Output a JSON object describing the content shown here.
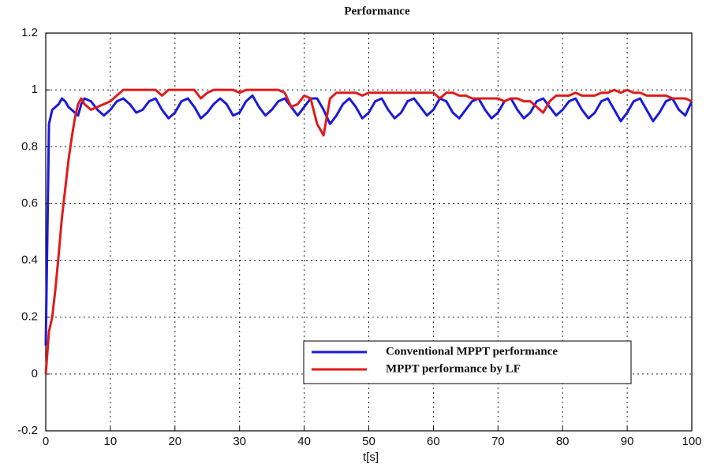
{
  "chart_data": {
    "type": "line",
    "title": "Performance",
    "x_label": "t[s]",
    "x": [
      0,
      0.5,
      1,
      1.5,
      2,
      2.5,
      3,
      3.5,
      4,
      4.5,
      5,
      5.5,
      6,
      7,
      8,
      9,
      10,
      11,
      12,
      13,
      14,
      15,
      16,
      17,
      18,
      19,
      20,
      21,
      22,
      23,
      24,
      25,
      26,
      27,
      28,
      29,
      30,
      31,
      32,
      33,
      34,
      35,
      36,
      37,
      38,
      39,
      40,
      41,
      42,
      43,
      44,
      45,
      46,
      47,
      48,
      49,
      50,
      51,
      52,
      53,
      54,
      55,
      56,
      57,
      58,
      59,
      60,
      61,
      62,
      63,
      64,
      65,
      66,
      67,
      68,
      69,
      70,
      71,
      72,
      73,
      74,
      75,
      76,
      77,
      78,
      79,
      80,
      81,
      82,
      83,
      84,
      85,
      86,
      87,
      88,
      89,
      90,
      91,
      92,
      93,
      94,
      95,
      96,
      97,
      98,
      99,
      100
    ],
    "series": [
      {
        "name": "Conventional MPPT performance",
        "color": "#1a1adb",
        "values": [
          0.1,
          0.88,
          0.93,
          0.94,
          0.95,
          0.97,
          0.96,
          0.94,
          0.93,
          0.92,
          0.91,
          0.95,
          0.97,
          0.96,
          0.93,
          0.91,
          0.93,
          0.96,
          0.97,
          0.95,
          0.92,
          0.93,
          0.96,
          0.97,
          0.93,
          0.9,
          0.92,
          0.96,
          0.97,
          0.94,
          0.9,
          0.92,
          0.95,
          0.97,
          0.95,
          0.91,
          0.92,
          0.96,
          0.98,
          0.94,
          0.91,
          0.93,
          0.96,
          0.97,
          0.94,
          0.91,
          0.94,
          0.97,
          0.97,
          0.93,
          0.88,
          0.91,
          0.95,
          0.97,
          0.94,
          0.9,
          0.92,
          0.96,
          0.97,
          0.93,
          0.9,
          0.92,
          0.96,
          0.97,
          0.94,
          0.91,
          0.93,
          0.97,
          0.96,
          0.92,
          0.9,
          0.93,
          0.96,
          0.97,
          0.93,
          0.9,
          0.92,
          0.96,
          0.97,
          0.93,
          0.9,
          0.92,
          0.96,
          0.97,
          0.94,
          0.91,
          0.93,
          0.96,
          0.97,
          0.93,
          0.9,
          0.92,
          0.96,
          0.97,
          0.93,
          0.89,
          0.92,
          0.96,
          0.97,
          0.93,
          0.89,
          0.92,
          0.96,
          0.97,
          0.93,
          0.91,
          0.96
        ]
      },
      {
        "name": "MPPT performance by LF",
        "color": "#e01b1b",
        "values": [
          0,
          0.15,
          0.2,
          0.3,
          0.42,
          0.55,
          0.65,
          0.75,
          0.83,
          0.9,
          0.95,
          0.97,
          0.95,
          0.93,
          0.94,
          0.95,
          0.96,
          0.98,
          1.0,
          1.0,
          1.0,
          1.0,
          1.0,
          1.0,
          0.98,
          1.0,
          1.0,
          1.0,
          1.0,
          1.0,
          0.97,
          0.99,
          1.0,
          1.0,
          1.0,
          1.0,
          0.99,
          1.0,
          1.0,
          1.0,
          1.0,
          1.0,
          1.0,
          0.99,
          0.94,
          0.95,
          0.98,
          0.97,
          0.88,
          0.84,
          0.97,
          0.99,
          0.99,
          0.99,
          0.99,
          0.98,
          0.99,
          0.99,
          0.99,
          0.99,
          0.99,
          0.99,
          0.99,
          0.99,
          0.99,
          0.99,
          0.99,
          0.97,
          0.99,
          0.99,
          0.98,
          0.98,
          0.97,
          0.97,
          0.97,
          0.97,
          0.97,
          0.96,
          0.97,
          0.97,
          0.96,
          0.96,
          0.94,
          0.92,
          0.96,
          0.98,
          0.98,
          0.98,
          0.99,
          0.98,
          0.98,
          0.98,
          0.99,
          0.99,
          1.0,
          0.99,
          1.0,
          0.99,
          0.99,
          0.98,
          0.98,
          0.98,
          0.98,
          0.97,
          0.97,
          0.97,
          0.96
        ]
      }
    ],
    "xlim": [
      0,
      100
    ],
    "xticks": [
      0,
      10,
      20,
      30,
      40,
      50,
      60,
      70,
      80,
      90,
      100
    ],
    "ylim": [
      -0.2,
      1.2
    ],
    "yticks": [
      -0.2,
      0,
      0.2,
      0.4,
      0.6,
      0.8,
      1,
      1.2
    ],
    "grid": true,
    "legend": "lower right"
  }
}
